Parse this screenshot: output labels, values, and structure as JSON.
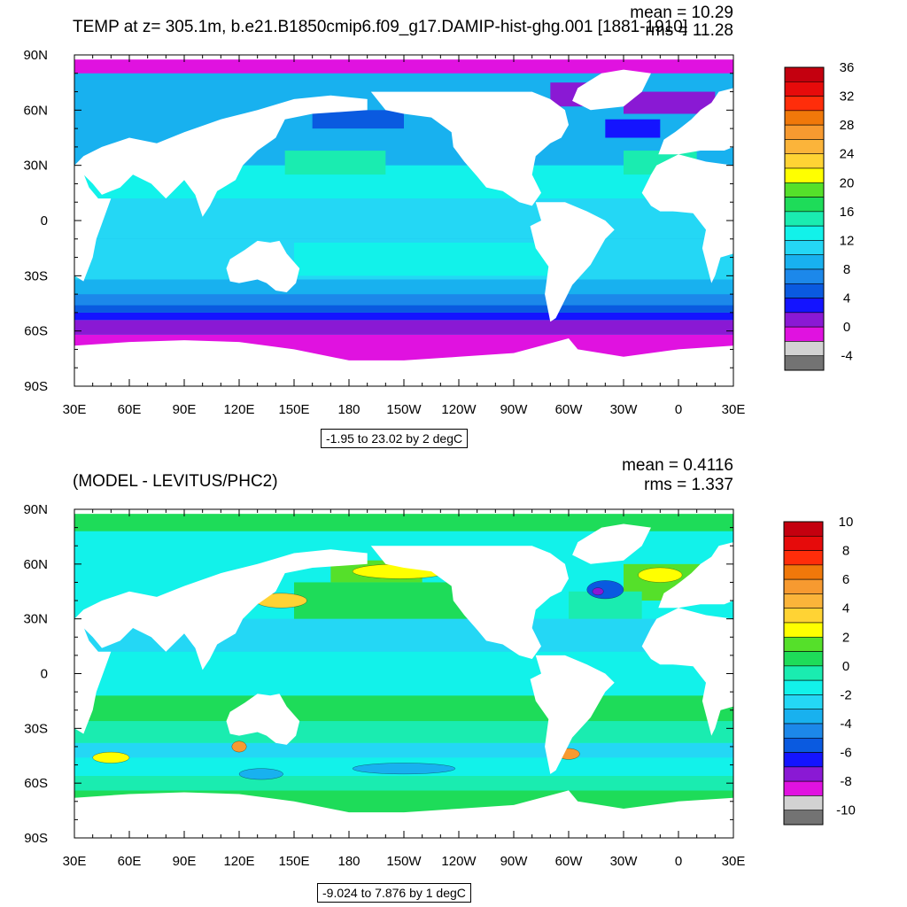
{
  "chart_data": [
    {
      "type": "heatmap",
      "title": "TEMP at z= 305.1m, b.e21.B1850cmip6.f09_g17.DAMIP-hist-ghg.001 [1881-1910]",
      "stats": {
        "mean": "mean = 10.29",
        "rms": "rms = 11.28"
      },
      "contour_info": "-1.95 to 23.02 by 2 degC",
      "x_ticks": [
        "30E",
        "60E",
        "90E",
        "120E",
        "150E",
        "180",
        "150W",
        "120W",
        "90W",
        "60W",
        "30W",
        "0",
        "30E"
      ],
      "y_ticks": [
        "90N",
        "60N",
        "30N",
        "0",
        "30S",
        "60S",
        "90S"
      ],
      "xlim": [
        30,
        390
      ],
      "ylim": [
        -90,
        90
      ],
      "colorbar": {
        "labels": [
          "36",
          "32",
          "28",
          "24",
          "20",
          "16",
          "12",
          "8",
          "4",
          "0",
          "-4"
        ],
        "colors": [
          "#c4000f",
          "#e60b0b",
          "#ff2d0a",
          "#f0780a",
          "#f79a30",
          "#fbb43a",
          "#ffd334",
          "#ffff00",
          "#55e02a",
          "#1edc59",
          "#1aecb0",
          "#12f2ea",
          "#24d7f5",
          "#18b1ef",
          "#1c88ea",
          "#0a5ae0",
          "#1414ff",
          "#8a19d4",
          "#e012e0",
          "#d2d2d2",
          "#737373"
        ]
      }
    },
    {
      "type": "heatmap",
      "title": "(MODEL - LEVITUS/PHC2)",
      "stats": {
        "mean": "mean = 0.4116",
        "rms": "rms = 1.337"
      },
      "contour_info": "-9.024 to 7.876 by 1 degC",
      "x_ticks": [
        "30E",
        "60E",
        "90E",
        "120E",
        "150E",
        "180",
        "150W",
        "120W",
        "90W",
        "60W",
        "30W",
        "0",
        "30E"
      ],
      "y_ticks": [
        "90N",
        "60N",
        "30N",
        "0",
        "30S",
        "60S",
        "90S"
      ],
      "xlim": [
        30,
        390
      ],
      "ylim": [
        -90,
        90
      ],
      "colorbar": {
        "labels": [
          "10",
          "8",
          "6",
          "4",
          "2",
          "0",
          "-2",
          "-4",
          "-6",
          "-8",
          "-10"
        ],
        "colors": [
          "#c4000f",
          "#e60b0b",
          "#ff2d0a",
          "#f0780a",
          "#f79a30",
          "#fbb43a",
          "#ffd334",
          "#ffff00",
          "#55e02a",
          "#1edc59",
          "#1aecb0",
          "#12f2ea",
          "#24d7f5",
          "#18b1ef",
          "#1c88ea",
          "#0a5ae0",
          "#1414ff",
          "#8a19d4",
          "#e012e0",
          "#d2d2d2",
          "#737373"
        ]
      }
    }
  ]
}
